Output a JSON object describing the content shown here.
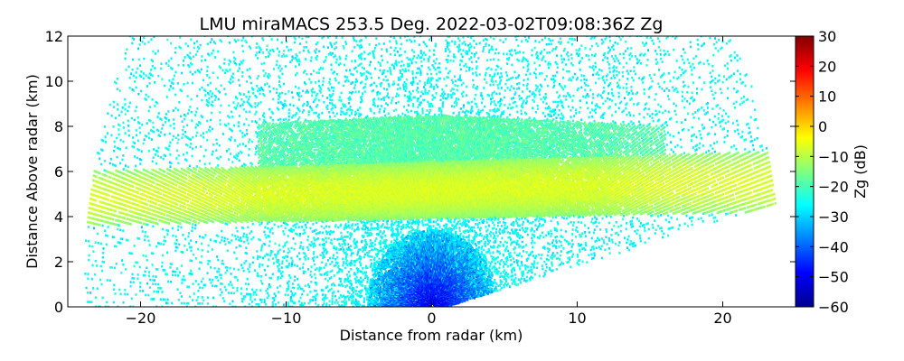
{
  "chart_data": {
    "type": "heatmap",
    "title": "LMU miraMACS 253.5 Deg. 2022-03-02T09:08:36Z  Zg",
    "xlabel": "Distance from radar (km)",
    "ylabel": "Distance Above radar  (km)",
    "xlim": [
      -25,
      25
    ],
    "ylim": [
      0,
      12
    ],
    "x_ticks": [
      -20,
      -10,
      0,
      10,
      20
    ],
    "y_ticks": [
      0,
      2,
      4,
      6,
      8,
      10,
      12
    ],
    "colorbar": {
      "label": "Zg (dB)",
      "range": [
        -60,
        30
      ],
      "ticks": [
        30,
        20,
        10,
        0,
        -10,
        -20,
        -30,
        -40,
        -50,
        -60
      ],
      "colormap": "jet"
    },
    "scan_max_range_km": 24,
    "regions": [
      {
        "name": "snow layer",
        "height_bottom_left_km": 3.6,
        "height_top_left_km": 6.0,
        "height_bottom_right_km": 4.2,
        "height_top_right_km": 6.9,
        "zg_db_core": -7,
        "zg_db_edge": -14
      },
      {
        "name": "upper layer",
        "x_range_km": [
          -12,
          16
        ],
        "height_range_km": [
          6.0,
          8.5
        ],
        "zg_db": -19
      },
      {
        "name": "sparse echoes above",
        "height_range_km": [
          7.0,
          12.0
        ],
        "zg_db": -26
      },
      {
        "name": "sparse echoes below",
        "height_range_km": [
          0,
          3.5
        ],
        "zg_db": -27
      },
      {
        "name": "near-radar noise",
        "x_range_km": [
          -4,
          4
        ],
        "height_range_km": [
          0,
          3.2
        ],
        "zg_db": -40
      }
    ]
  }
}
